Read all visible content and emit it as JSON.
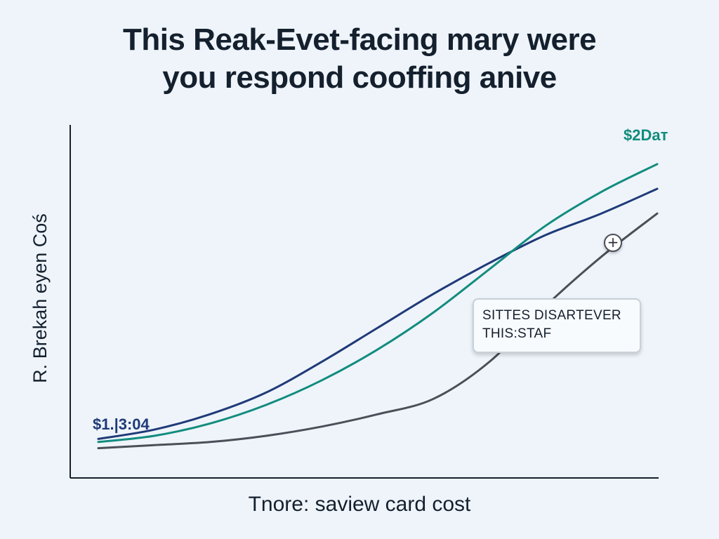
{
  "title": {
    "line1": "This Reak-Evet-facing mary were",
    "line2": "you respond cooffing anive"
  },
  "callout": {
    "line1": "SITTES DISARTEVER",
    "line2": "THIS:STAF"
  },
  "icons": {
    "callout_marker": "plus-icon"
  },
  "colors": {
    "background": "#eef4fa",
    "navy": "#1f3a78",
    "teal": "#128c7e",
    "gray": "#4a4f58",
    "text": "#15202e"
  },
  "chart_data": {
    "type": "line",
    "title": "This Reak-Evet-facing mary were you respond cooffing anive",
    "xlabel": "Tnore: saview card cost",
    "ylabel": "R. Brekah eyen Coś",
    "start_label": "$1.|3:04",
    "end_label": "$2Dат",
    "grid": false,
    "legend": "none",
    "x": [
      0,
      10,
      20,
      30,
      40,
      50,
      60,
      70,
      80,
      90,
      100
    ],
    "xlim": [
      0,
      100
    ],
    "ylim": [
      0,
      100
    ],
    "series": [
      {
        "color": "#1f3a78",
        "values": [
          9,
          12,
          17,
          24,
          34,
          45,
          56,
          66,
          75,
          82,
          90
        ]
      },
      {
        "color": "#128c7e",
        "values": [
          8,
          10,
          14,
          20,
          28,
          38,
          50,
          64,
          78,
          89,
          98
        ]
      },
      {
        "color": "#4a4f58",
        "values": [
          6,
          7,
          8,
          10,
          13,
          17,
          22,
          34,
          52,
          68,
          82
        ]
      }
    ]
  }
}
